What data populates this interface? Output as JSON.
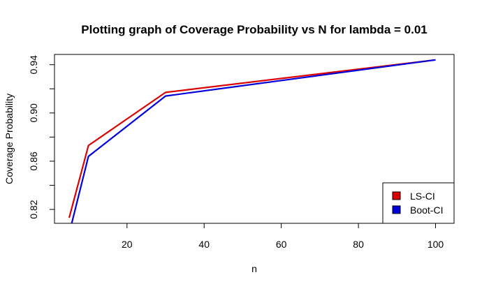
{
  "chart_data": {
    "type": "line",
    "title": "Plotting graph of Coverage Probability vs N for lambda =  0.01",
    "xlabel": "n",
    "ylabel": "Coverage Probability",
    "xlim": [
      1.2,
      104.8
    ],
    "ylim": [
      0.8085,
      0.9485
    ],
    "x_ticks": [
      20,
      40,
      60,
      80,
      100
    ],
    "x_tick_labels": [
      "20",
      "40",
      "60",
      "80",
      "100"
    ],
    "y_ticks": [
      0.8,
      0.82,
      0.84,
      0.86,
      0.88,
      0.9,
      0.92,
      0.94
    ],
    "y_tick_labels": [
      "",
      "0.82",
      "",
      "0.86",
      "",
      "0.90",
      "",
      "0.94"
    ],
    "grid": false,
    "legend_position": "bottom-right",
    "series": [
      {
        "name": "LS-CI",
        "color": "#dd0000",
        "x": [
          5,
          10,
          30,
          100
        ],
        "y": [
          0.813,
          0.873,
          0.917,
          0.944
        ]
      },
      {
        "name": "Boot-CI",
        "color": "#0000dd",
        "x": [
          5,
          10,
          30,
          100
        ],
        "y": [
          0.8,
          0.864,
          0.914,
          0.944
        ]
      }
    ]
  }
}
